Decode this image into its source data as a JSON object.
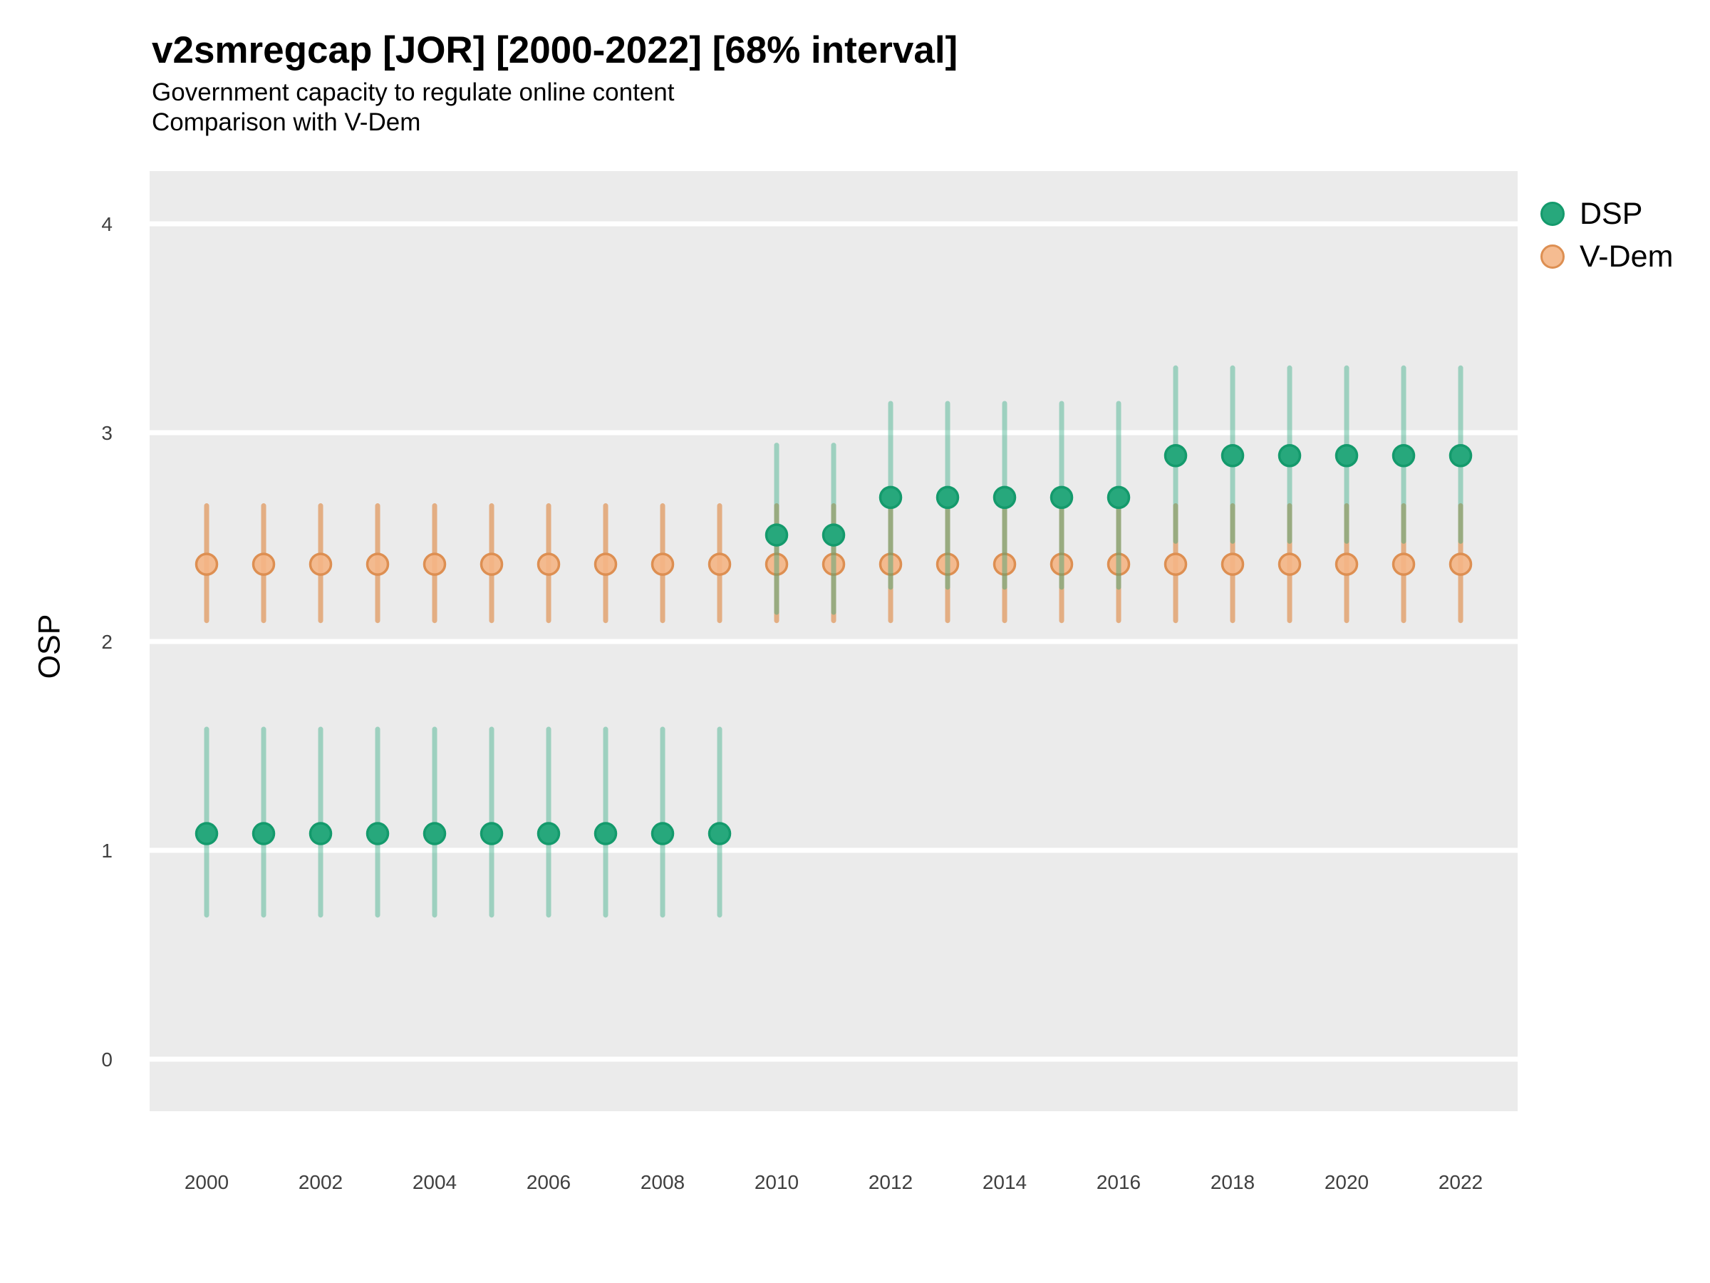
{
  "header": {
    "title": "v2smregcap [JOR] [2000-2022] [68% interval]",
    "subtitle1": "Government capacity to regulate online content",
    "subtitle2": "Comparison with V-Dem"
  },
  "colors": {
    "panel_bg": "#ebebeb",
    "gridline": "#ffffff",
    "tick_label": "#404040",
    "dsp_point_fill": "#27a87c",
    "dsp_point_stroke": "#149a6c",
    "dsp_bar": "rgba(39,168,124,0.40)",
    "vdem_point_fill": "rgba(244,181,133,0.90)",
    "vdem_point_stroke": "#dd8f52",
    "vdem_bar": "rgba(221,124,45,0.55)"
  },
  "chart_data": {
    "type": "pointrange",
    "title": "v2smregcap [JOR] [2000-2022] [68% interval]",
    "subtitle": [
      "Government capacity to regulate online content",
      "Comparison with V-Dem"
    ],
    "xlabel": "",
    "ylabel": "OSP",
    "ylim": [
      -0.25,
      4.25
    ],
    "yticks": [
      0,
      1,
      2,
      3,
      4
    ],
    "ytick_labels": [
      "0",
      "1",
      "2",
      "3",
      "4"
    ],
    "x": [
      2000,
      2001,
      2002,
      2003,
      2004,
      2005,
      2006,
      2007,
      2008,
      2009,
      2010,
      2011,
      2012,
      2013,
      2014,
      2015,
      2016,
      2017,
      2018,
      2019,
      2020,
      2021,
      2022
    ],
    "xtick_labels": [
      "2000",
      "2002",
      "2004",
      "2006",
      "2008",
      "2010",
      "2012",
      "2014",
      "2016",
      "2018",
      "2020",
      "2022"
    ],
    "xticks": [
      2000,
      2002,
      2004,
      2006,
      2008,
      2010,
      2012,
      2014,
      2016,
      2018,
      2020,
      2022
    ],
    "grid": "horizontal-major-only",
    "legend_position": "right",
    "interval_note": "68% interval",
    "series": [
      {
        "name": "V-Dem",
        "values": [
          2.37,
          2.37,
          2.37,
          2.37,
          2.37,
          2.37,
          2.37,
          2.37,
          2.37,
          2.37,
          2.37,
          2.37,
          2.37,
          2.37,
          2.37,
          2.37,
          2.37,
          2.37,
          2.37,
          2.37,
          2.37,
          2.37,
          2.37
        ],
        "lo": [
          2.1,
          2.1,
          2.1,
          2.1,
          2.1,
          2.1,
          2.1,
          2.1,
          2.1,
          2.1,
          2.1,
          2.1,
          2.1,
          2.1,
          2.1,
          2.1,
          2.1,
          2.1,
          2.1,
          2.1,
          2.1,
          2.1,
          2.1
        ],
        "hi": [
          2.65,
          2.65,
          2.65,
          2.65,
          2.65,
          2.65,
          2.65,
          2.65,
          2.65,
          2.65,
          2.65,
          2.65,
          2.65,
          2.65,
          2.65,
          2.65,
          2.65,
          2.65,
          2.65,
          2.65,
          2.65,
          2.65,
          2.65
        ]
      },
      {
        "name": "DSP",
        "values": [
          1.08,
          1.08,
          1.08,
          1.08,
          1.08,
          1.08,
          1.08,
          1.08,
          1.08,
          1.08,
          2.51,
          2.51,
          2.69,
          2.69,
          2.69,
          2.69,
          2.69,
          2.89,
          2.89,
          2.89,
          2.89,
          2.89,
          2.89
        ],
        "lo": [
          0.69,
          0.69,
          0.69,
          0.69,
          0.69,
          0.69,
          0.69,
          0.69,
          0.69,
          0.69,
          2.14,
          2.14,
          2.26,
          2.26,
          2.26,
          2.26,
          2.26,
          2.48,
          2.48,
          2.48,
          2.48,
          2.48,
          2.48
        ],
        "hi": [
          1.58,
          1.58,
          1.58,
          1.58,
          1.58,
          1.58,
          1.58,
          1.58,
          1.58,
          1.58,
          2.94,
          2.94,
          3.14,
          3.14,
          3.14,
          3.14,
          3.14,
          3.31,
          3.31,
          3.31,
          3.31,
          3.31,
          3.31
        ]
      }
    ]
  },
  "legend": {
    "items": [
      {
        "label": "DSP"
      },
      {
        "label": "V-Dem"
      }
    ]
  }
}
